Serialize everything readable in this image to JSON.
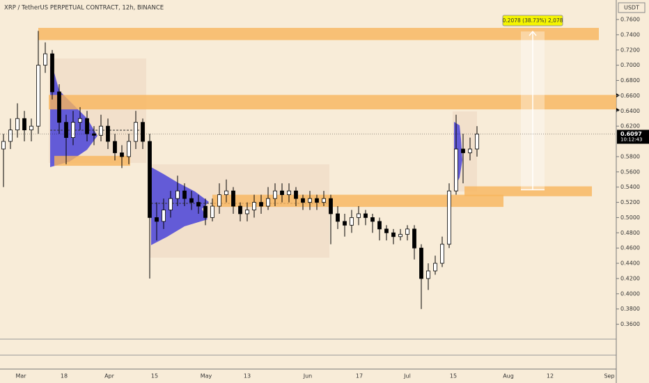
{
  "chart_data": {
    "type": "candlestick",
    "title": "XRP / TetherUS PERPETUAL CONTRACT, 12h, BINANCE",
    "currency": "USDT",
    "last_price": {
      "value": 0.6097,
      "label": "0.6097",
      "countdown": "10:12:43"
    },
    "xticks": [
      "Mar",
      "18",
      "Apr",
      "15",
      "May",
      "13",
      "Jun",
      "17",
      "Jul",
      "15",
      "Aug",
      "12",
      "Sep"
    ],
    "ylim": [
      0.3377,
      0.7856
    ],
    "yticks": [
      {
        "value": 0.76,
        "label": "0.7600"
      },
      {
        "value": 0.74,
        "label": "0.7400"
      },
      {
        "value": 0.72,
        "label": "0.7200"
      },
      {
        "value": 0.7,
        "label": "0.7000"
      },
      {
        "value": 0.68,
        "label": "0.6800"
      },
      {
        "value": 0.66,
        "label": "0.6600"
      },
      {
        "value": 0.64,
        "label": "0.6400"
      },
      {
        "value": 0.62,
        "label": "0.6200"
      },
      {
        "value": 0.58,
        "label": "0.5800"
      },
      {
        "value": 0.56,
        "label": "0.5600"
      },
      {
        "value": 0.54,
        "label": "0.5400"
      },
      {
        "value": 0.52,
        "label": "0.5200"
      },
      {
        "value": 0.5,
        "label": "0.5000"
      },
      {
        "value": 0.48,
        "label": "0.4800"
      },
      {
        "value": 0.46,
        "label": "0.4600"
      },
      {
        "value": 0.44,
        "label": "0.4400"
      },
      {
        "value": 0.42,
        "label": "0.4200"
      },
      {
        "value": 0.4,
        "label": "0.4000"
      },
      {
        "value": 0.38,
        "label": "0.3800"
      },
      {
        "value": 0.36,
        "label": "0.3600"
      }
    ],
    "open": [
      0.59,
      0.6,
      0.615,
      0.63,
      0.615,
      0.62,
      0.7,
      0.715,
      0.665,
      0.625,
      0.605,
      0.625,
      0.63,
      0.61,
      0.608,
      0.62,
      0.6,
      0.585,
      0.58,
      0.6,
      0.625,
      0.6,
      0.5,
      0.495,
      0.51,
      0.525,
      0.535,
      0.525,
      0.52,
      0.515,
      0.5,
      0.515,
      0.53,
      0.535,
      0.515,
      0.505,
      0.51,
      0.52,
      0.515,
      0.525,
      0.535,
      0.53,
      0.535,
      0.525,
      0.52,
      0.525,
      0.52,
      0.525,
      0.505,
      0.495,
      0.49,
      0.5,
      0.505,
      0.5,
      0.495,
      0.485,
      0.48,
      0.475,
      0.478,
      0.485,
      0.46,
      0.42,
      0.43,
      0.44,
      0.465,
      0.535,
      0.59,
      0.585,
      0.59
    ],
    "high": [
      0.61,
      0.63,
      0.65,
      0.64,
      0.63,
      0.745,
      0.73,
      0.72,
      0.675,
      0.635,
      0.64,
      0.645,
      0.64,
      0.62,
      0.635,
      0.63,
      0.61,
      0.595,
      0.61,
      0.64,
      0.63,
      0.61,
      0.52,
      0.525,
      0.535,
      0.555,
      0.545,
      0.535,
      0.53,
      0.525,
      0.525,
      0.545,
      0.55,
      0.54,
      0.52,
      0.52,
      0.53,
      0.53,
      0.54,
      0.545,
      0.545,
      0.545,
      0.54,
      0.53,
      0.535,
      0.53,
      0.535,
      0.53,
      0.515,
      0.505,
      0.51,
      0.515,
      0.51,
      0.505,
      0.5,
      0.49,
      0.485,
      0.485,
      0.49,
      0.49,
      0.465,
      0.44,
      0.45,
      0.475,
      0.545,
      0.635,
      0.61,
      0.605,
      0.62
    ],
    "low": [
      0.54,
      0.59,
      0.605,
      0.6,
      0.6,
      0.61,
      0.69,
      0.655,
      0.61,
      0.57,
      0.595,
      0.615,
      0.6,
      0.595,
      0.6,
      0.59,
      0.575,
      0.565,
      0.57,
      0.59,
      0.59,
      0.42,
      0.47,
      0.485,
      0.5,
      0.515,
      0.515,
      0.51,
      0.505,
      0.49,
      0.495,
      0.505,
      0.52,
      0.505,
      0.495,
      0.495,
      0.5,
      0.505,
      0.51,
      0.515,
      0.52,
      0.52,
      0.515,
      0.51,
      0.51,
      0.51,
      0.515,
      0.465,
      0.485,
      0.475,
      0.48,
      0.49,
      0.49,
      0.48,
      0.47,
      0.47,
      0.465,
      0.47,
      0.47,
      0.445,
      0.38,
      0.405,
      0.425,
      0.435,
      0.46,
      0.53,
      0.545,
      0.575,
      0.58
    ],
    "close": [
      0.6,
      0.615,
      0.63,
      0.615,
      0.62,
      0.7,
      0.715,
      0.665,
      0.625,
      0.605,
      0.625,
      0.63,
      0.61,
      0.608,
      0.62,
      0.6,
      0.585,
      0.58,
      0.6,
      0.625,
      0.6,
      0.5,
      0.495,
      0.51,
      0.525,
      0.535,
      0.525,
      0.52,
      0.515,
      0.5,
      0.515,
      0.53,
      0.535,
      0.515,
      0.505,
      0.51,
      0.52,
      0.515,
      0.525,
      0.535,
      0.53,
      0.535,
      0.525,
      0.52,
      0.525,
      0.52,
      0.525,
      0.505,
      0.495,
      0.49,
      0.5,
      0.505,
      0.5,
      0.495,
      0.485,
      0.48,
      0.475,
      0.478,
      0.485,
      0.46,
      0.42,
      0.43,
      0.44,
      0.465,
      0.535,
      0.59,
      0.585,
      0.59,
      0.6097
    ],
    "zones": {
      "color": "#f7b55c",
      "ranges": [
        [
          0.749,
          0.733
        ],
        [
          0.661,
          0.642
        ],
        [
          0.581,
          0.568
        ],
        [
          0.541,
          0.528
        ],
        [
          0.53,
          0.514
        ]
      ]
    },
    "measure": {
      "label": "0.2078 (38.73%) 2,078",
      "from": 0.5365,
      "to": 0.7443
    }
  }
}
